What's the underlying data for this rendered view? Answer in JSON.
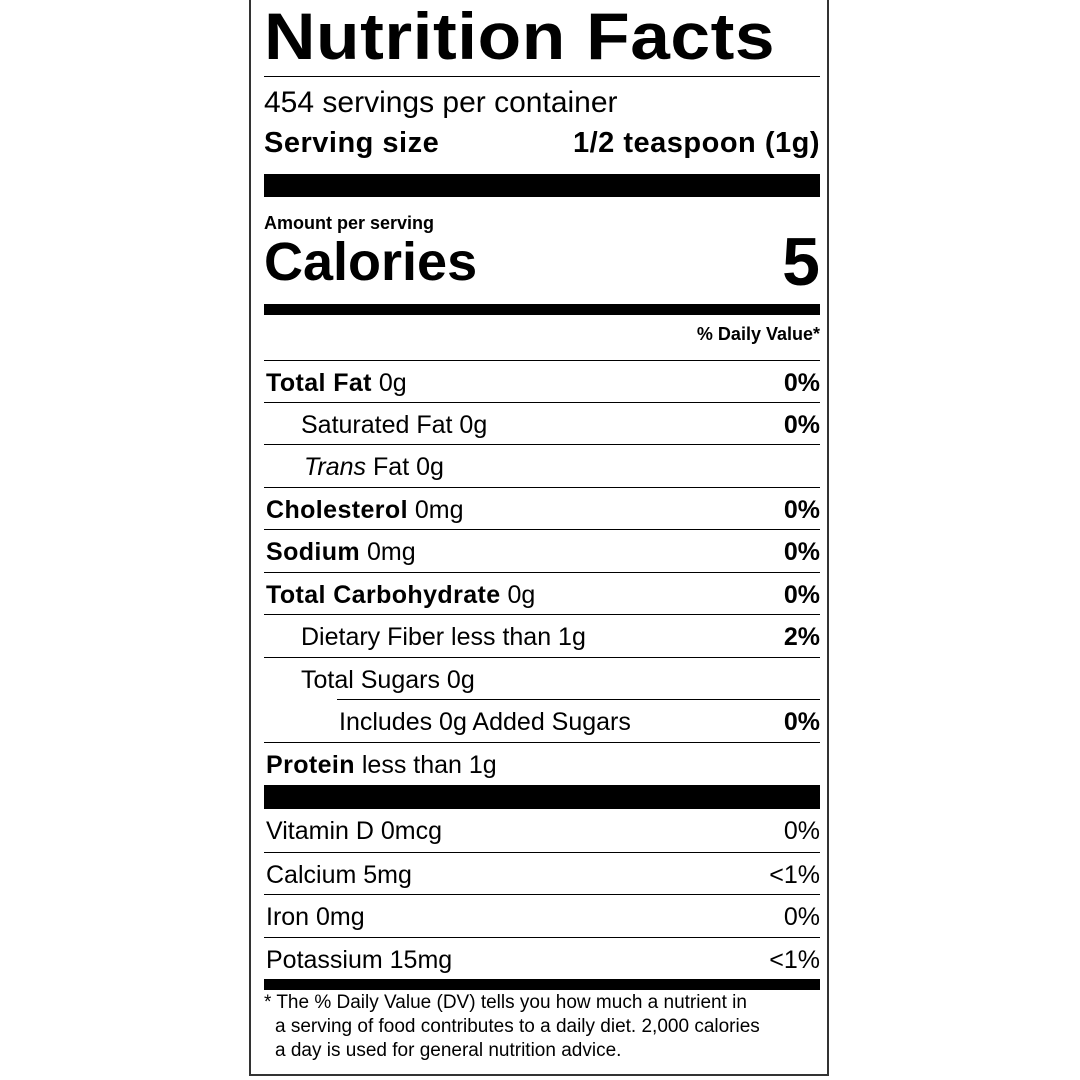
{
  "title": "Nutrition Facts",
  "servings_per_container": "454 servings per container",
  "serving_size_label": "Serving size",
  "serving_size_value": "1/2 teaspoon (1g)",
  "amount_per_serving": "Amount per serving",
  "calories_label": "Calories",
  "calories_value": "5",
  "daily_value_header": "% Daily Value*",
  "nutrients": [
    {
      "name": "Total Fat",
      "amount": "0g",
      "dv": "0%"
    },
    {
      "name": "Saturated Fat 0g",
      "amount": "",
      "dv": "0%"
    },
    {
      "name": "Trans",
      "amount": "Fat 0g",
      "dv": ""
    },
    {
      "name": "Cholesterol",
      "amount": "0mg",
      "dv": "0%"
    },
    {
      "name": "Sodium",
      "amount": "0mg",
      "dv": "0%"
    },
    {
      "name": "Total Carbohydrate",
      "amount": "0g",
      "dv": "0%"
    },
    {
      "name": "Dietary Fiber less than 1g",
      "amount": "",
      "dv": "2%"
    },
    {
      "name": "Total Sugars 0g",
      "amount": "",
      "dv": ""
    },
    {
      "name": "Includes 0g Added Sugars",
      "amount": "",
      "dv": "0%"
    },
    {
      "name": "Protein",
      "amount": "less than 1g",
      "dv": ""
    }
  ],
  "vitamins": [
    {
      "name": "Vitamin D 0mcg",
      "dv": "0%"
    },
    {
      "name": "Calcium 5mg",
      "dv": "<1%"
    },
    {
      "name": "Iron 0mg",
      "dv": "0%"
    },
    {
      "name": "Potassium 15mg",
      "dv": "<1%"
    }
  ],
  "footnote": [
    "* The % Daily Value (DV) tells you how much a nutrient in",
    "a serving of food contributes to a daily diet. 2,000 calories",
    "a day is used for general nutrition advice."
  ]
}
